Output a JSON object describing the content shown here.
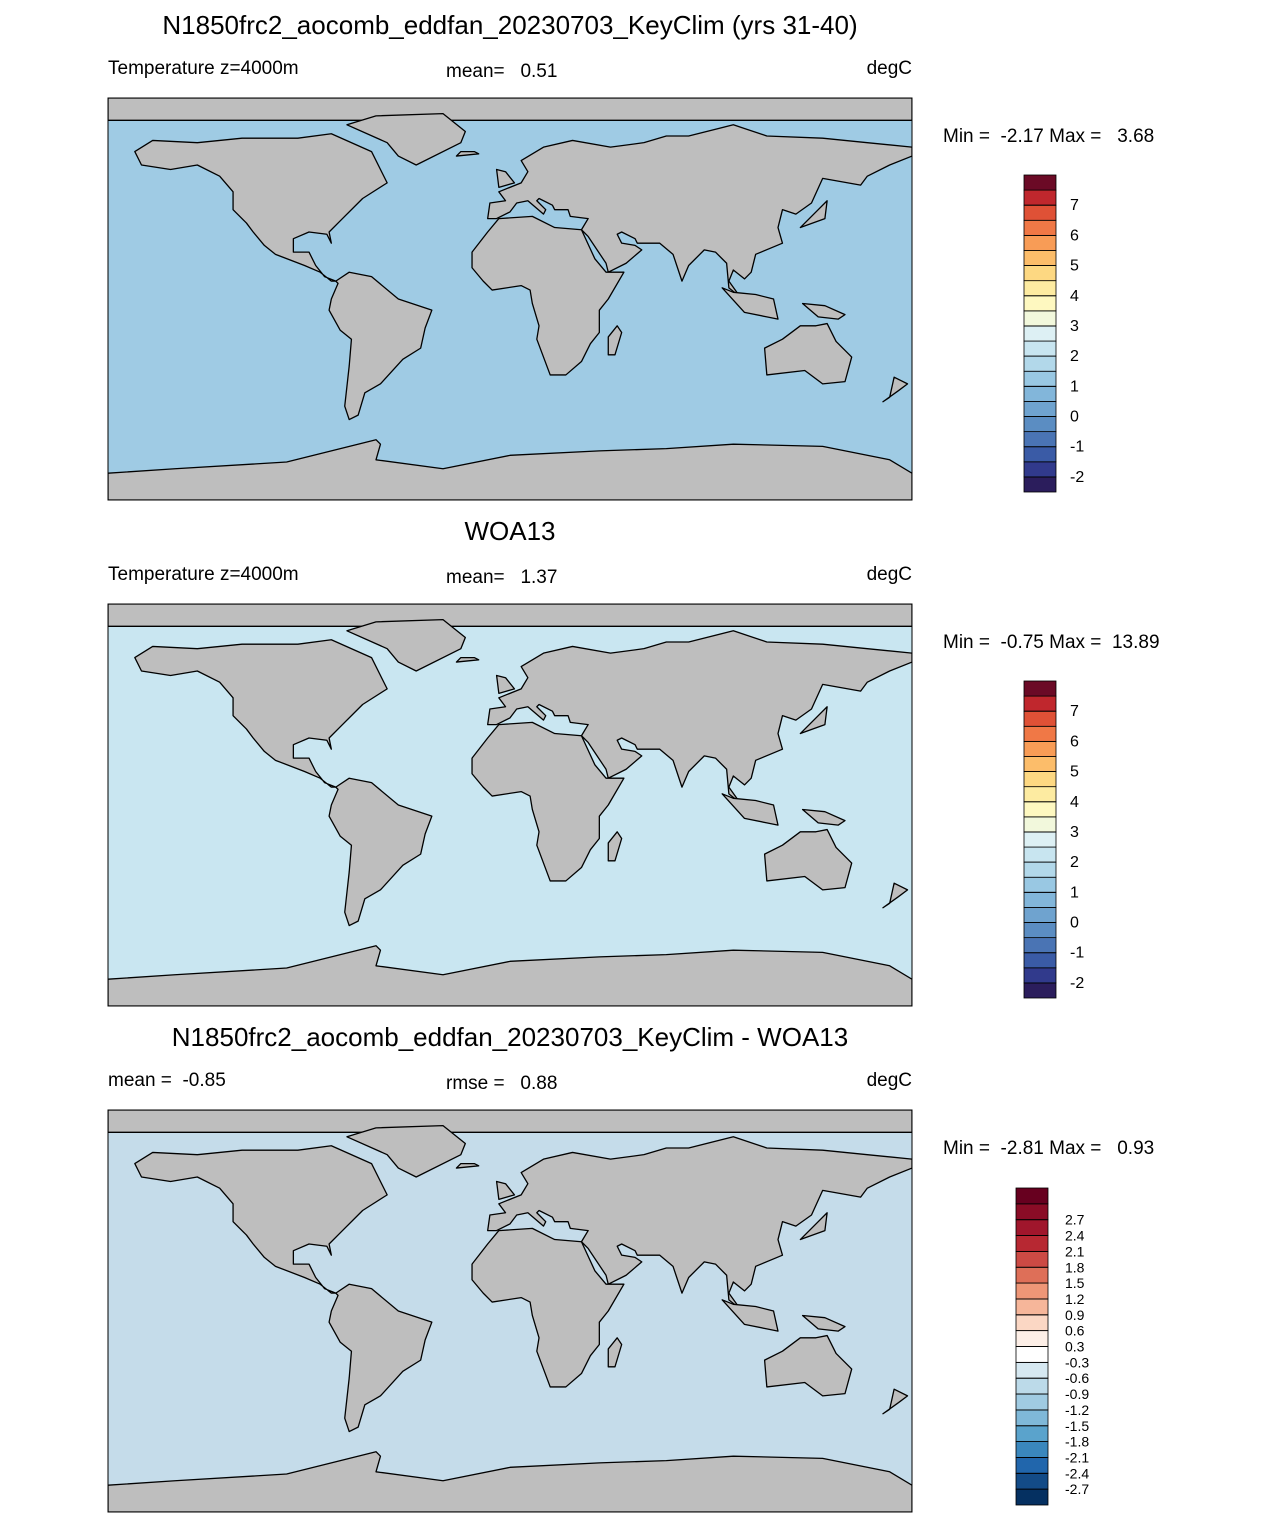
{
  "panels": [
    {
      "title": "N1850frc2_aocomb_eddfan_20230703_KeyClim (yrs 31-40)",
      "left_label": "Temperature z=4000m",
      "center_label": "mean=   0.51",
      "units": "degC",
      "minmax": "Min =  -2.17 Max =   3.68",
      "ocean_color": "#9fcbe4",
      "colorbar": {
        "ticks": [
          -2,
          -1,
          0,
          1,
          2,
          3,
          4,
          5,
          6,
          7
        ],
        "tick_step": 2,
        "colors": [
          "#2b1d5c",
          "#313a8c",
          "#3a5ba6",
          "#4a74b4",
          "#5b8dc2",
          "#6fa3cf",
          "#82b6da",
          "#99c8e3",
          "#b2d8ea",
          "#c8e5f0",
          "#ddf0f4",
          "#f2f8dc",
          "#fef8c0",
          "#fdeba1",
          "#fdd882",
          "#fcbd6a",
          "#f89c56",
          "#f07846",
          "#df5136",
          "#c0272d",
          "#6b0a26"
        ]
      }
    },
    {
      "title": "WOA13",
      "left_label": "Temperature z=4000m",
      "center_label": "mean=   1.37",
      "units": "degC",
      "minmax": "Min =  -0.75 Max =  13.89",
      "ocean_color": "#c9e6f1",
      "colorbar": {
        "ticks": [
          -2,
          -1,
          0,
          1,
          2,
          3,
          4,
          5,
          6,
          7
        ],
        "tick_step": 2,
        "colors": [
          "#2b1d5c",
          "#313a8c",
          "#3a5ba6",
          "#4a74b4",
          "#5b8dc2",
          "#6fa3cf",
          "#82b6da",
          "#99c8e3",
          "#b2d8ea",
          "#c8e5f0",
          "#ddf0f4",
          "#f2f8dc",
          "#fef8c0",
          "#fdeba1",
          "#fdd882",
          "#fcbd6a",
          "#f89c56",
          "#f07846",
          "#df5136",
          "#c0272d",
          "#6b0a26"
        ]
      }
    },
    {
      "title": "N1850frc2_aocomb_eddfan_20230703_KeyClim - WOA13",
      "left_label": "mean =  -0.85",
      "center_label": "rmse =   0.88",
      "units": "degC",
      "minmax": "Min =  -2.81 Max =   0.93",
      "ocean_color": "#c5dcea",
      "colorbar": {
        "ticks": [
          -2.7,
          -2.4,
          -2.1,
          -1.8,
          -1.5,
          -1.2,
          -0.9,
          -0.6,
          -0.3,
          0.3,
          0.6,
          0.9,
          1.2,
          1.5,
          1.8,
          2.1,
          2.4,
          2.7
        ],
        "tick_step": 1,
        "colors": [
          "#053061",
          "#134b87",
          "#2166ac",
          "#3a87bd",
          "#5aa3cc",
          "#7fb8d8",
          "#a0cbe2",
          "#bcdae9",
          "#d6e8f1",
          "#ffffff",
          "#fdefe7",
          "#fbd7c4",
          "#f6b69a",
          "#ee9677",
          "#de6f58",
          "#cc4a44",
          "#b72832",
          "#a0162c",
          "#8a0c26",
          "#67001f"
        ]
      }
    }
  ]
}
